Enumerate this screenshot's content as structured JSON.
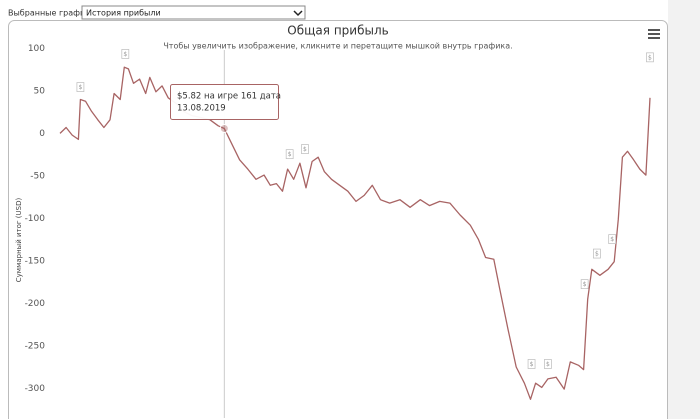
{
  "header": {
    "label": "Выбранные графики:",
    "select": "История прибыли"
  },
  "chart_data": {
    "type": "line",
    "title": "Общая прибыль",
    "subtitle": "Чтобы увеличить изображение, кликните и перетащите мышкой внутрь графика.",
    "y_label": "Суммарный итог (USD)",
    "color": "#a86464",
    "xlim": [
      0,
      580
    ],
    "ylim": [
      -335,
      110
    ],
    "yticks": [
      100,
      50,
      0,
      -50,
      -100,
      -150,
      -200,
      -250,
      -300
    ],
    "grid": false,
    "x": [
      0,
      6,
      12,
      18,
      20,
      25,
      31,
      37,
      43,
      49,
      53,
      59,
      63,
      67,
      72,
      78,
      84,
      88,
      94,
      100,
      106,
      114,
      121,
      129,
      137,
      147,
      155,
      161,
      169,
      176,
      184,
      192,
      200,
      206,
      212,
      218,
      223,
      229,
      235,
      241,
      247,
      253,
      259,
      266,
      274,
      282,
      290,
      298,
      306,
      314,
      323,
      333,
      343,
      353,
      362,
      372,
      382,
      392,
      402,
      410,
      417,
      425,
      431,
      439,
      447,
      455,
      461,
      466,
      472,
      478,
      486,
      494,
      500,
      508,
      513,
      517,
      521,
      529,
      537,
      543,
      547,
      551,
      556,
      562,
      568,
      574,
      578
    ],
    "values": [
      0,
      7,
      -2,
      -7,
      40,
      38,
      26,
      16,
      7,
      16,
      47,
      40,
      78,
      76,
      59,
      64,
      47,
      66,
      49,
      56,
      42,
      35,
      26,
      21,
      19,
      16,
      9,
      5.82,
      -14,
      -31,
      -42,
      -54,
      -49,
      -61,
      -59,
      -68,
      -42,
      -54,
      -35,
      -64,
      -33,
      -28,
      -45,
      -54,
      -61,
      -68,
      -80,
      -73,
      -61,
      -78,
      -82,
      -78,
      -87,
      -78,
      -85,
      -80,
      -82,
      -96,
      -108,
      -125,
      -146,
      -148,
      -184,
      -231,
      -275,
      -294,
      -313,
      -294,
      -299,
      -289,
      -287,
      -301,
      -269,
      -273,
      -278,
      -195,
      -160,
      -167,
      -160,
      -151,
      -101,
      -28,
      -21,
      -31,
      -42,
      -49,
      42
    ],
    "flags": [
      {
        "x": 20,
        "y": 54,
        "label": "$"
      },
      {
        "x": 64,
        "y": 93,
        "label": "$"
      },
      {
        "x": 225,
        "y": -25,
        "label": "$"
      },
      {
        "x": 240,
        "y": -19,
        "label": "$"
      },
      {
        "x": 462,
        "y": -272,
        "label": "$"
      },
      {
        "x": 478,
        "y": -272,
        "label": "$"
      },
      {
        "x": 514,
        "y": -178,
        "label": "$"
      },
      {
        "x": 526,
        "y": -142,
        "label": "$"
      },
      {
        "x": 541,
        "y": -125,
        "label": "$"
      },
      {
        "x": 578,
        "y": 89,
        "label": "$"
      }
    ],
    "tooltip": {
      "x": 161,
      "y": 5.82,
      "lines": [
        "$5.82 на игре 161 дата",
        "13.08.2019"
      ]
    }
  }
}
